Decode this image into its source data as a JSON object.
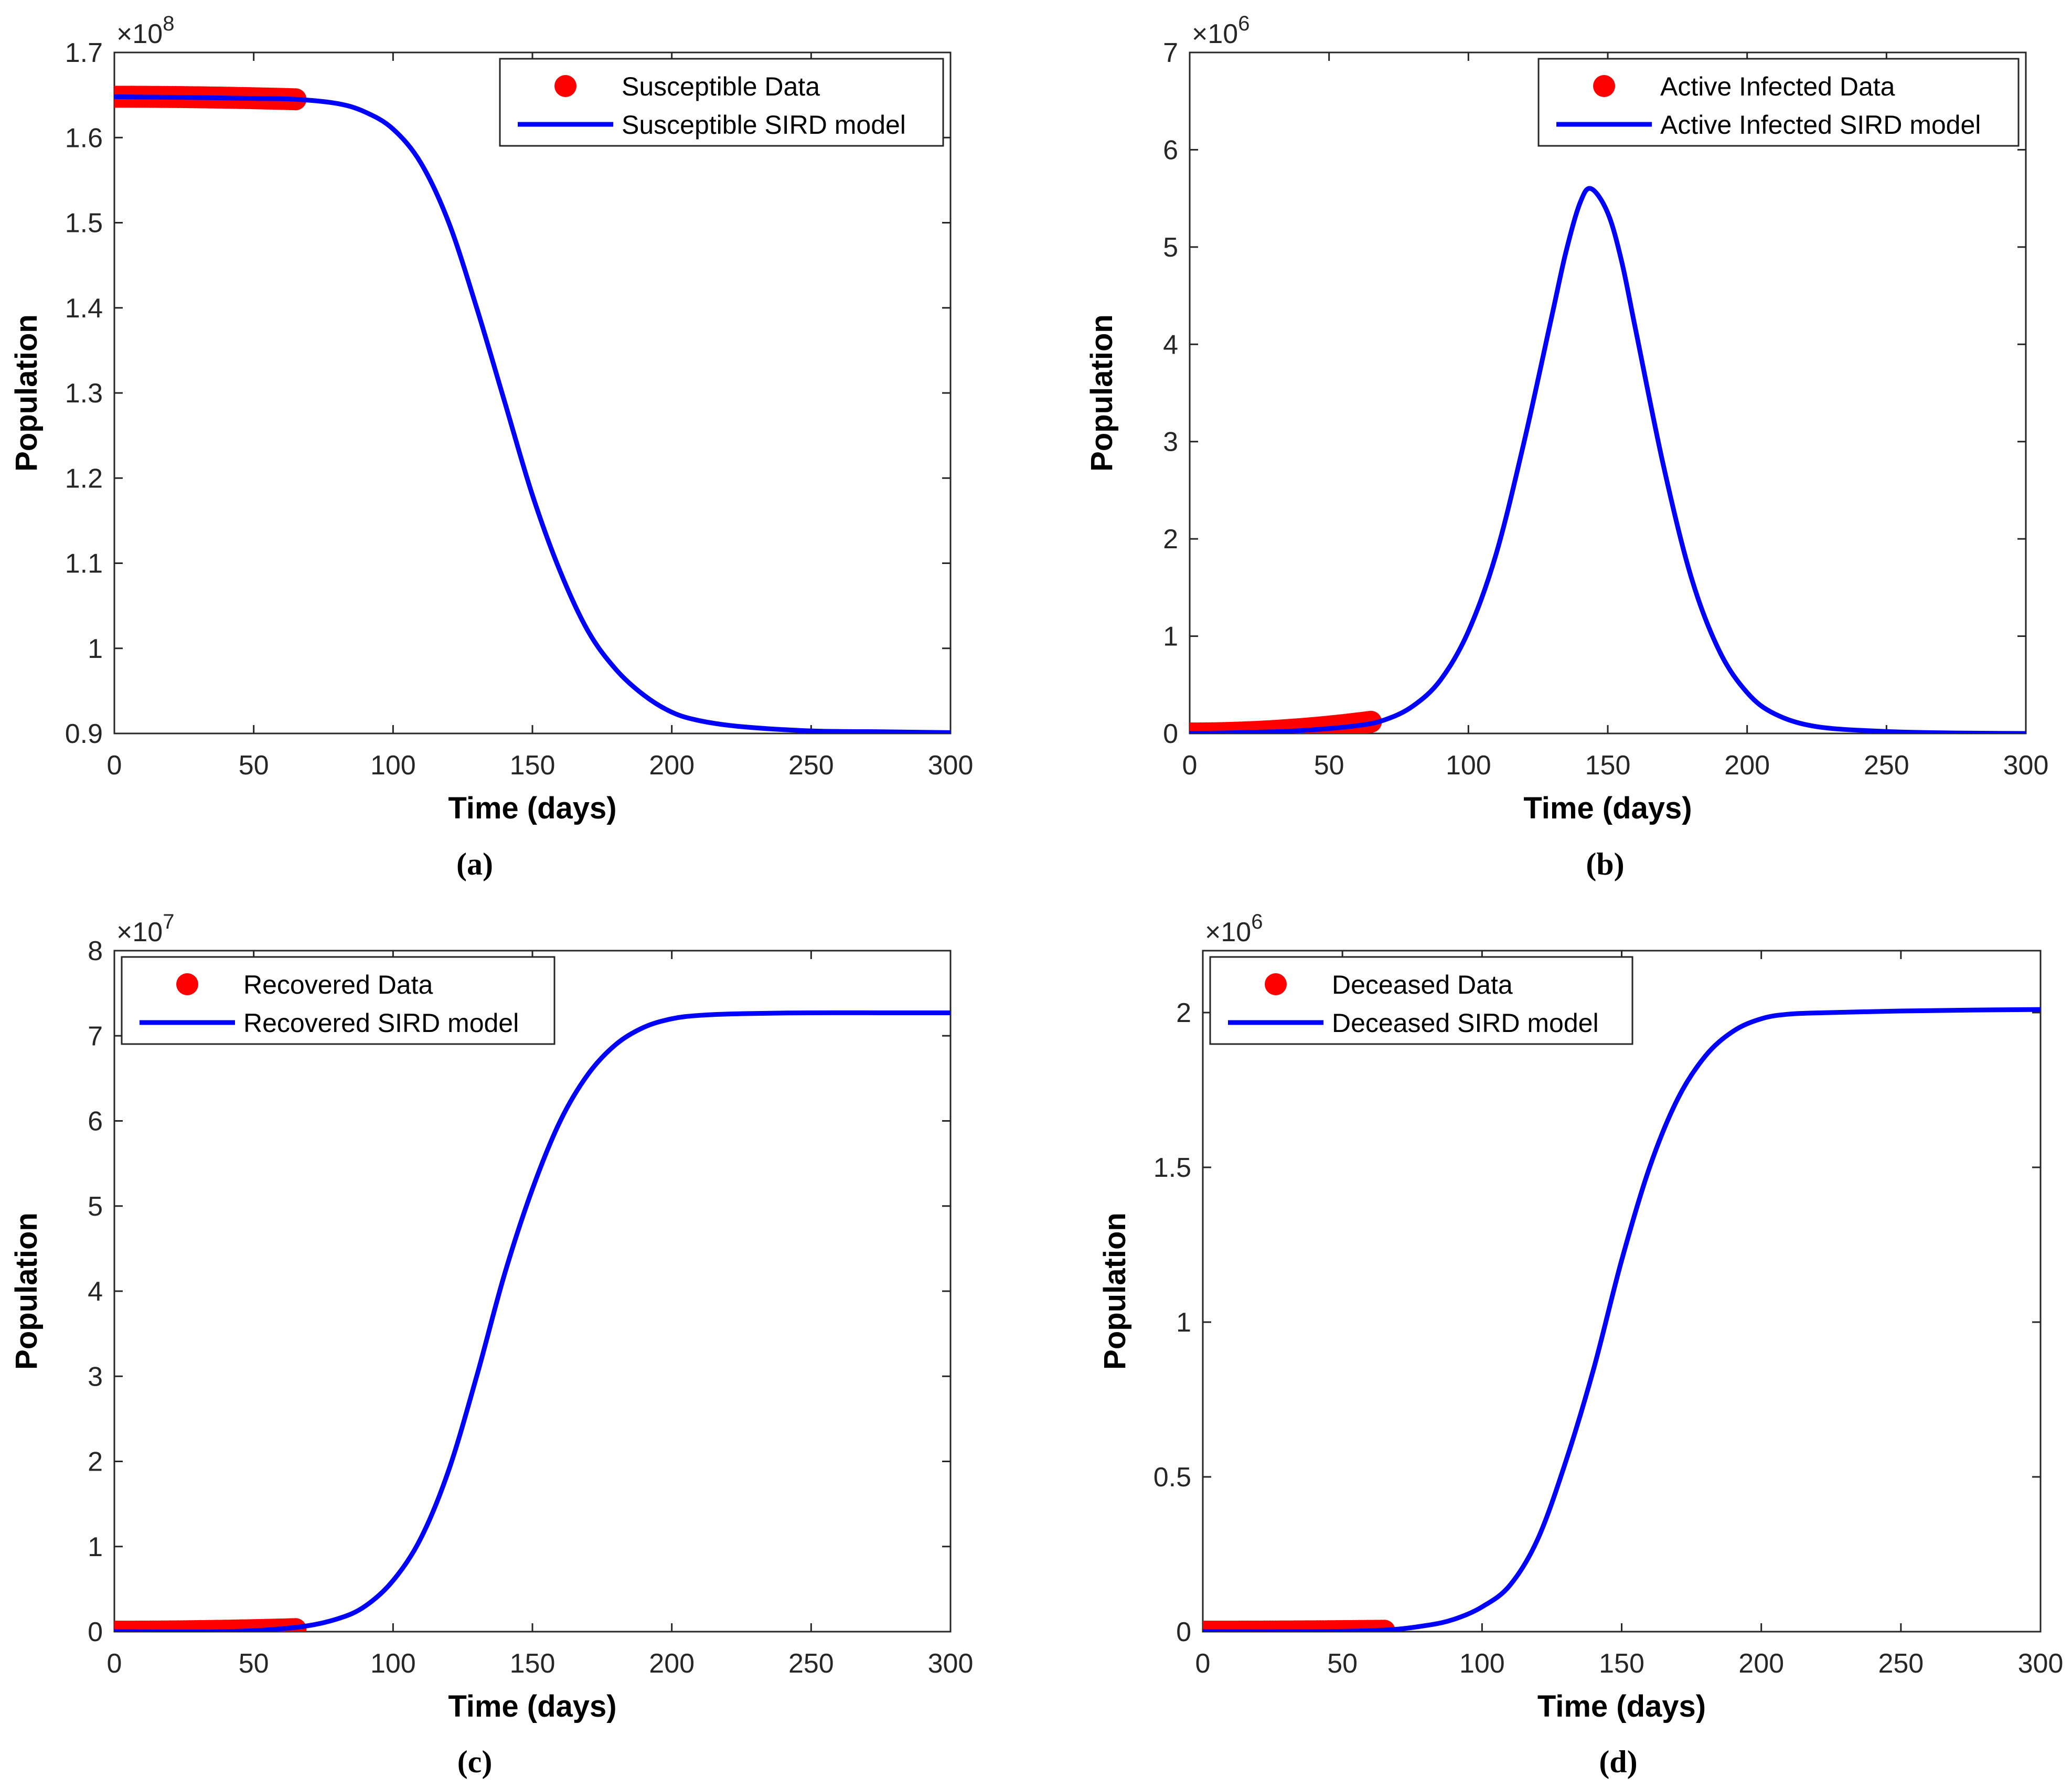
{
  "colors": {
    "data": "#ff0000",
    "model": "#0000ff",
    "axis": "#262626"
  },
  "chart_data": [
    {
      "id": "a",
      "type": "line",
      "panel_label": "(a)",
      "xlabel": "Time (days)",
      "ylabel": "Population",
      "exponent_label": "×10",
      "exponent_power": "8",
      "xlim": [
        0,
        300
      ],
      "ylim": [
        0.9,
        1.7
      ],
      "xticks": [
        0,
        50,
        100,
        150,
        200,
        250,
        300
      ],
      "xtick_labels": [
        "0",
        "50",
        "100",
        "150",
        "200",
        "250",
        "300"
      ],
      "yticks": [
        0.9,
        1.0,
        1.1,
        1.2,
        1.3,
        1.4,
        1.5,
        1.6,
        1.7
      ],
      "ytick_labels": [
        "0.9",
        "1",
        "1.1",
        "1.2",
        "1.3",
        "1.4",
        "1.5",
        "1.6",
        "1.7"
      ],
      "legend_position": "top-right",
      "series": [
        {
          "name": "Susceptible Data",
          "kind": "data",
          "x_range": [
            0,
            65
          ],
          "y_start": 1.648,
          "y_end": 1.645
        },
        {
          "name": "Susceptible SIRD model",
          "kind": "model",
          "x": [
            0,
            30,
            50,
            65,
            80,
            90,
            100,
            110,
            120,
            130,
            140,
            150,
            160,
            170,
            180,
            190,
            200,
            210,
            225,
            250,
            275,
            300
          ],
          "y": [
            1.648,
            1.647,
            1.646,
            1.645,
            1.64,
            1.63,
            1.61,
            1.57,
            1.5,
            1.4,
            1.29,
            1.18,
            1.09,
            1.02,
            0.975,
            0.945,
            0.925,
            0.915,
            0.908,
            0.903,
            0.902,
            0.901
          ]
        }
      ]
    },
    {
      "id": "b",
      "type": "line",
      "panel_label": "(b)",
      "xlabel": "Time (days)",
      "ylabel": "Population",
      "exponent_label": "×10",
      "exponent_power": "6",
      "xlim": [
        0,
        300
      ],
      "ylim": [
        0,
        7
      ],
      "xticks": [
        0,
        50,
        100,
        150,
        200,
        250,
        300
      ],
      "xtick_labels": [
        "0",
        "50",
        "100",
        "150",
        "200",
        "250",
        "300"
      ],
      "yticks": [
        0,
        1,
        2,
        3,
        4,
        5,
        6,
        7
      ],
      "ytick_labels": [
        "0",
        "1",
        "2",
        "3",
        "4",
        "5",
        "6",
        "7"
      ],
      "legend_position": "top-right",
      "series": [
        {
          "name": "Active Infected Data",
          "kind": "data",
          "x_range": [
            0,
            65
          ],
          "y_start": 0.0,
          "y_end": 0.12
        },
        {
          "name": "Active Infected SIRD model",
          "kind": "model",
          "x": [
            0,
            20,
            40,
            60,
            70,
            80,
            90,
            100,
            110,
            120,
            130,
            135,
            140,
            144,
            150,
            155,
            160,
            170,
            180,
            190,
            200,
            210,
            225,
            250,
            275,
            300
          ],
          "y": [
            0.0,
            0.01,
            0.03,
            0.08,
            0.14,
            0.28,
            0.55,
            1.05,
            1.85,
            3.0,
            4.3,
            4.95,
            5.45,
            5.6,
            5.35,
            4.85,
            4.15,
            2.75,
            1.6,
            0.85,
            0.42,
            0.2,
            0.07,
            0.02,
            0.005,
            0.0
          ]
        }
      ]
    },
    {
      "id": "c",
      "type": "line",
      "panel_label": "(c)",
      "xlabel": "Time (days)",
      "ylabel": "Population",
      "exponent_label": "×10",
      "exponent_power": "7",
      "xlim": [
        0,
        300
      ],
      "ylim": [
        0,
        8
      ],
      "xticks": [
        0,
        50,
        100,
        150,
        200,
        250,
        300
      ],
      "xtick_labels": [
        "0",
        "50",
        "100",
        "150",
        "200",
        "250",
        "300"
      ],
      "yticks": [
        0,
        1,
        2,
        3,
        4,
        5,
        6,
        7,
        8
      ],
      "ytick_labels": [
        "0",
        "1",
        "2",
        "3",
        "4",
        "5",
        "6",
        "7",
        "8"
      ],
      "legend_position": "top-left",
      "series": [
        {
          "name": "Recovered Data",
          "kind": "data",
          "x_range": [
            0,
            65
          ],
          "y_start": 0.0,
          "y_end": 0.03
        },
        {
          "name": "Recovered SIRD model",
          "kind": "model",
          "x": [
            0,
            40,
            65,
            80,
            90,
            100,
            110,
            120,
            130,
            140,
            150,
            160,
            170,
            180,
            190,
            200,
            210,
            225,
            250,
            275,
            300
          ],
          "y": [
            0.0,
            0.0,
            0.05,
            0.15,
            0.3,
            0.6,
            1.1,
            1.9,
            3.0,
            4.2,
            5.2,
            6.0,
            6.55,
            6.9,
            7.1,
            7.2,
            7.24,
            7.26,
            7.27,
            7.27,
            7.27
          ]
        }
      ]
    },
    {
      "id": "d",
      "type": "line",
      "panel_label": "(d)",
      "xlabel": "Time (days)",
      "ylabel": "Population",
      "exponent_label": "×10",
      "exponent_power": "6",
      "xlim": [
        0,
        300
      ],
      "ylim": [
        0,
        2.2
      ],
      "xticks": [
        0,
        50,
        100,
        150,
        200,
        250,
        300
      ],
      "xtick_labels": [
        "0",
        "50",
        "100",
        "150",
        "200",
        "250",
        "300"
      ],
      "yticks": [
        0,
        0.5,
        1.0,
        1.5,
        2.0
      ],
      "ytick_labels": [
        "0",
        "0.5",
        "1",
        "1.5",
        "2"
      ],
      "legend_position": "top-left",
      "series": [
        {
          "name": "Deceased Data",
          "kind": "data",
          "x_range": [
            0,
            65
          ],
          "y_start": 0.0,
          "y_end": 0.003
        },
        {
          "name": "Deceased SIRD model",
          "kind": "model",
          "x": [
            0,
            40,
            65,
            80,
            90,
            100,
            110,
            120,
            130,
            140,
            150,
            160,
            170,
            180,
            190,
            200,
            210,
            225,
            250,
            275,
            300
          ],
          "y": [
            0.0,
            0.0,
            0.005,
            0.02,
            0.04,
            0.08,
            0.15,
            0.3,
            0.55,
            0.85,
            1.2,
            1.5,
            1.72,
            1.86,
            1.94,
            1.98,
            1.995,
            2.0,
            2.005,
            2.008,
            2.01
          ]
        }
      ]
    }
  ]
}
